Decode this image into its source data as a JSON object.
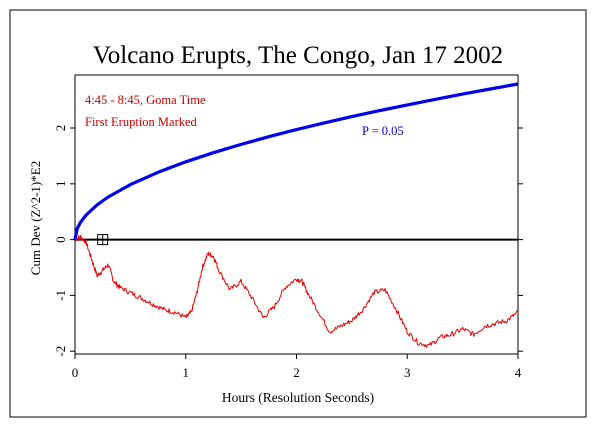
{
  "chart_data": {
    "type": "line",
    "title": "Volcano Erupts, The Congo, Jan 17 2002",
    "xlabel": "Hours (Resolution Seconds)",
    "ylabel": "Cum Dev (Z^2-1)*E2",
    "xlim": [
      0,
      4
    ],
    "ylim": [
      -2.05,
      2.95
    ],
    "x_ticks": [
      0,
      1,
      2,
      3,
      4
    ],
    "y_ticks": [
      -2,
      -1,
      0,
      1,
      2
    ],
    "x_tick_labels": [
      "0",
      "1",
      "2",
      "3",
      "4"
    ],
    "y_tick_labels": [
      "-2",
      "-1",
      "0",
      "1",
      "2"
    ],
    "grid": false,
    "annotations": [
      "4:45 - 8:45, Goma Time",
      "First Eruption Marked"
    ],
    "series": [
      {
        "name": "P = 0.05",
        "color": "#0000ee",
        "x": [
          0,
          0.02,
          0.05,
          0.1,
          0.2,
          0.3,
          0.5,
          0.75,
          1.0,
          1.25,
          1.5,
          1.75,
          2.0,
          2.25,
          2.5,
          2.75,
          3.0,
          3.25,
          3.5,
          3.75,
          4.0
        ],
        "values": [
          0,
          0.197,
          0.311,
          0.441,
          0.623,
          0.763,
          0.985,
          1.207,
          1.394,
          1.558,
          1.707,
          1.844,
          1.971,
          2.091,
          2.204,
          2.312,
          2.415,
          2.513,
          2.608,
          2.699,
          2.788
        ]
      },
      {
        "color": "#ee0000",
        "x": [
          0,
          0.05,
          0.1,
          0.15,
          0.2,
          0.25,
          0.3,
          0.35,
          0.4,
          0.5,
          0.6,
          0.7,
          0.8,
          0.9,
          1.0,
          1.05,
          1.1,
          1.15,
          1.2,
          1.25,
          1.3,
          1.4,
          1.5,
          1.6,
          1.7,
          1.8,
          1.9,
          2.0,
          2.05,
          2.1,
          2.2,
          2.3,
          2.4,
          2.5,
          2.6,
          2.7,
          2.8,
          2.9,
          3.0,
          3.1,
          3.2,
          3.3,
          3.4,
          3.5,
          3.6,
          3.7,
          3.8,
          3.9,
          4.0
        ],
        "values": [
          0,
          0.05,
          -0.05,
          -0.35,
          -0.65,
          -0.55,
          -0.45,
          -0.75,
          -0.85,
          -0.95,
          -1.05,
          -1.15,
          -1.25,
          -1.3,
          -1.4,
          -1.3,
          -0.95,
          -0.5,
          -0.25,
          -0.3,
          -0.55,
          -0.9,
          -0.75,
          -1.05,
          -1.4,
          -1.2,
          -0.85,
          -0.7,
          -0.75,
          -0.95,
          -1.3,
          -1.65,
          -1.55,
          -1.45,
          -1.25,
          -0.95,
          -0.9,
          -1.25,
          -1.65,
          -1.85,
          -1.9,
          -1.75,
          -1.7,
          -1.6,
          -1.7,
          -1.55,
          -1.5,
          -1.45,
          -1.3
        ]
      }
    ],
    "marker": {
      "x": 0.25,
      "y": 0
    }
  }
}
